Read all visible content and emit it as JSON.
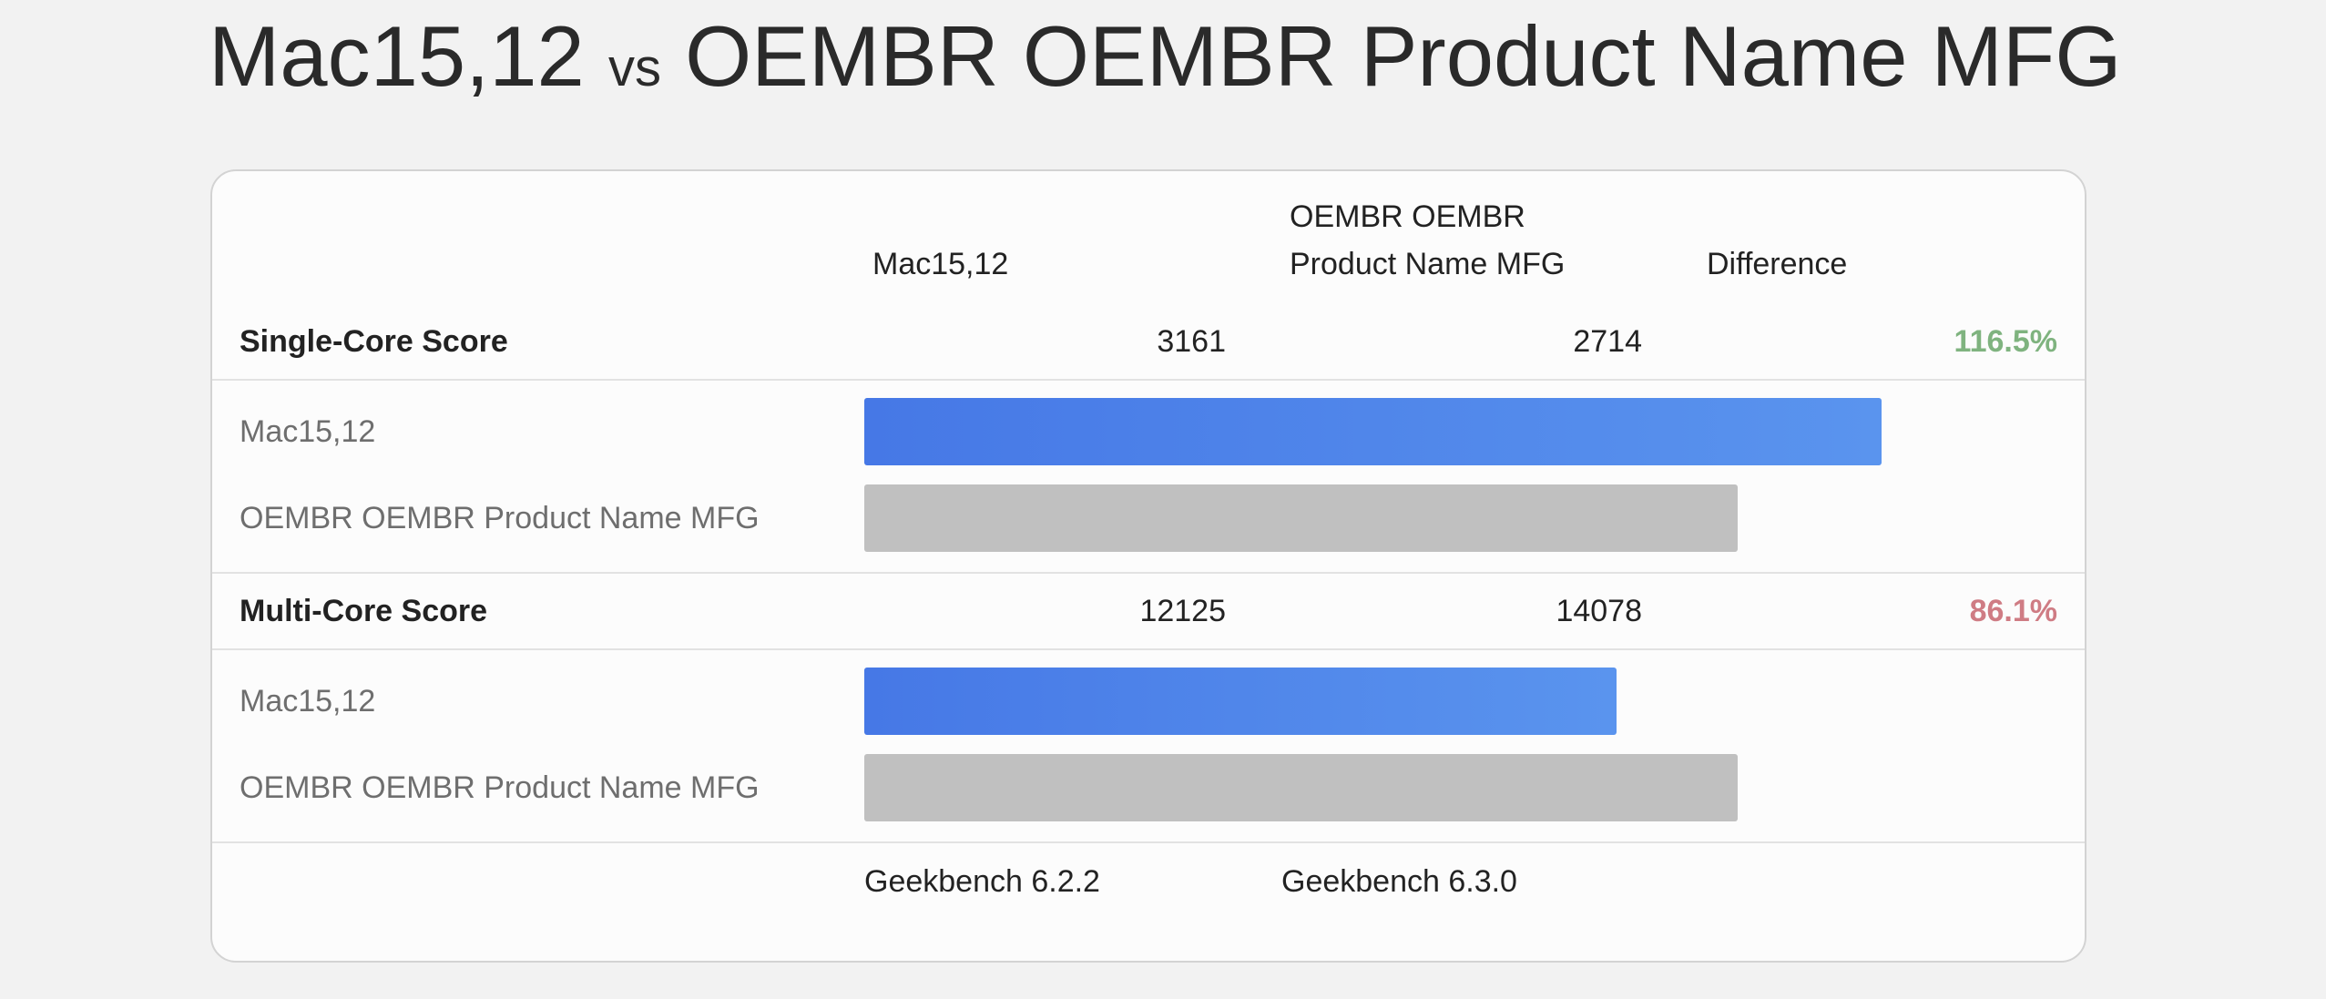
{
  "title": {
    "device_a": "Mac15,12",
    "vs": "vs",
    "device_b": "OEMBR OEMBR Product Name MFG"
  },
  "table": {
    "headers": {
      "col_a": "Mac15,12",
      "col_b_line1": "OEMBR OEMBR",
      "col_b_line2": "Product Name MFG",
      "col_diff": "Difference"
    },
    "single_core": {
      "label": "Single-Core Score",
      "score_a": "3161",
      "score_b": "2714",
      "difference": "116.5%",
      "difference_color": "#7fb37f",
      "bar_a_label": "Mac15,12",
      "bar_b_label": "OEMBR OEMBR Product Name MFG",
      "bar_a_fraction": 0.84,
      "bar_b_fraction": 0.7212
    },
    "multi_core": {
      "label": "Multi-Core Score",
      "score_a": "12125",
      "score_b": "14078",
      "difference": "86.1%",
      "difference_color": "#cf7c84",
      "bar_a_label": "Mac15,12",
      "bar_b_label": "OEMBR OEMBR Product Name MFG",
      "bar_a_fraction": 0.6212,
      "bar_b_fraction": 0.7212
    },
    "footer": {
      "version_a": "Geekbench 6.2.2",
      "version_b": "Geekbench 6.3.0"
    }
  },
  "colors": {
    "bar_primary_start": "#4678e6",
    "bar_primary_end": "#5a94ee",
    "bar_secondary": "#c0c0c0"
  }
}
